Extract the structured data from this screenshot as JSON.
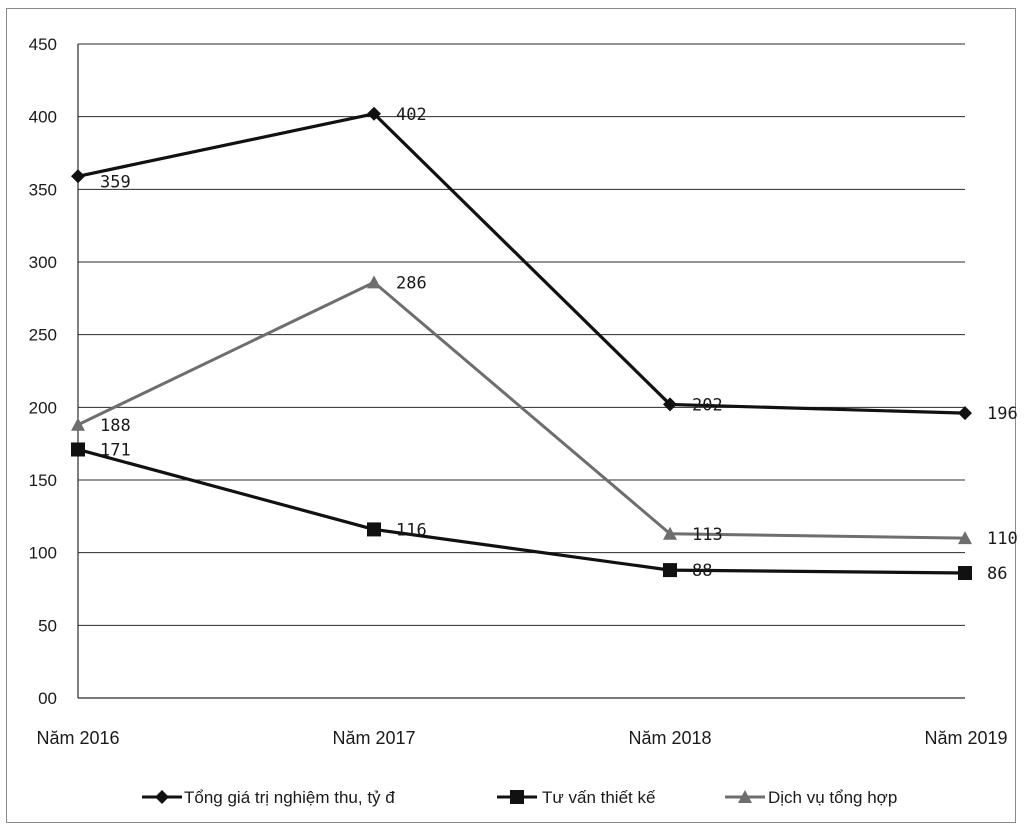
{
  "chart_data": {
    "type": "line",
    "title": "",
    "xlabel": "",
    "ylabel": "",
    "categories": [
      "Năm 2016",
      "Năm 2017",
      "Năm 2018",
      "Năm 2019"
    ],
    "y_ticks": [
      "00",
      "50",
      "100",
      "150",
      "200",
      "250",
      "300",
      "350",
      "400",
      "450"
    ],
    "ylim": [
      0,
      450
    ],
    "grid": true,
    "legend_position": "bottom",
    "series": [
      {
        "name": "Tổng giá trị nghiệm thu, tỷ đ",
        "values": [
          359,
          402,
          202,
          196
        ],
        "labels": [
          "359",
          "402",
          "202",
          "196"
        ],
        "marker": "diamond",
        "color": "#111111"
      },
      {
        "name": "Tư vấn thiết kế",
        "values": [
          171,
          116,
          88,
          86
        ],
        "labels": [
          "171",
          "116",
          "88",
          "86"
        ],
        "marker": "square",
        "color": "#111111"
      },
      {
        "name": "Dịch vụ tổng hợp",
        "values": [
          188,
          286,
          113,
          110
        ],
        "labels": [
          "188",
          "286",
          "113",
          "110"
        ],
        "marker": "triangle",
        "color": "#6e6e6e"
      }
    ]
  }
}
